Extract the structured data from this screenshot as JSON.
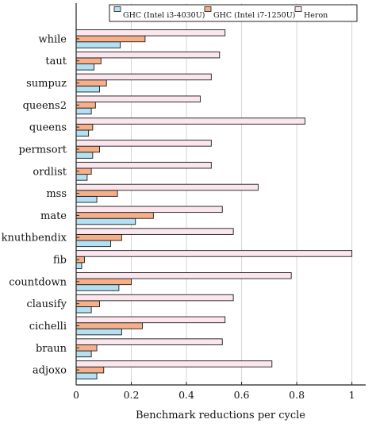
{
  "chart_data": {
    "type": "bar",
    "orientation": "horizontal",
    "title": "",
    "xlabel": "Benchmark reductions per cycle",
    "ylabel": "",
    "xlim": [
      0,
      1.05
    ],
    "xticks": [
      0,
      0.2,
      0.4,
      0.6,
      0.8,
      1
    ],
    "xtick_labels": [
      "0",
      "0.2",
      "0.4",
      "0.6",
      "0.8",
      "1"
    ],
    "grid": "vertical",
    "legend_position": "top-right",
    "categories": [
      "while",
      "taut",
      "sumpuz",
      "queens2",
      "queens",
      "permsort",
      "ordlist",
      "mss",
      "mate",
      "knuthbendix",
      "fib",
      "countdown",
      "clausify",
      "cichelli",
      "braun",
      "adjoxo"
    ],
    "series": [
      {
        "name": "GHC (Intel i3-4030U)",
        "color": "#b3e0f2",
        "values": [
          0.16,
          0.065,
          0.085,
          0.055,
          0.045,
          0.06,
          0.04,
          0.075,
          0.215,
          0.125,
          0.02,
          0.155,
          0.055,
          0.165,
          0.055,
          0.075
        ]
      },
      {
        "name": "GHC (Intel i7-1250U)",
        "color": "#f5b089",
        "values": [
          0.25,
          0.09,
          0.11,
          0.07,
          0.06,
          0.085,
          0.055,
          0.15,
          0.28,
          0.165,
          0.03,
          0.2,
          0.085,
          0.24,
          0.075,
          0.1
        ]
      },
      {
        "name": "Heron",
        "color": "#fbe6ee",
        "values": [
          0.54,
          0.52,
          0.49,
          0.45,
          0.83,
          0.49,
          0.49,
          0.66,
          0.53,
          0.57,
          1.0,
          0.78,
          0.57,
          0.54,
          0.53,
          0.71
        ]
      }
    ]
  }
}
